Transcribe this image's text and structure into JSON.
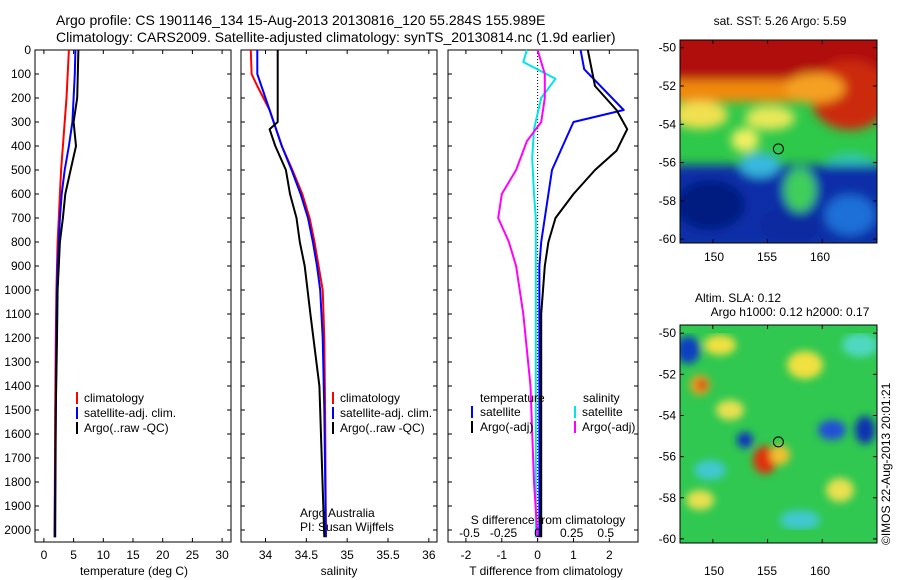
{
  "header": {
    "line1": "Argo profile: CS 1901146_134 15-Aug-2013 20130816_120 55.284S 155.989E",
    "line2": "Climatology: CARS2009. Satellite-adjusted climatology: synTS_20130814.nc (1.9d earlier)"
  },
  "colors": {
    "climatology": "#ff0000",
    "satellite": "#0000ff",
    "argo": "#000000",
    "salinity_sat": "#00e5e5",
    "salinity_argo": "#ff00ff"
  },
  "chart_data": [
    {
      "type": "line",
      "xlabel": "temperature (deg C)",
      "xlim": [
        -1.5,
        31.5
      ],
      "xticks": [
        0,
        5,
        10,
        15,
        20,
        25,
        30
      ],
      "ylim": [
        0,
        2050
      ],
      "yticks": [
        0,
        100,
        200,
        300,
        400,
        500,
        600,
        700,
        800,
        900,
        1000,
        1100,
        1200,
        1300,
        1400,
        1500,
        1600,
        1700,
        1800,
        1900,
        2000
      ],
      "legend": [
        "climatology",
        "satellite-adj. clim.",
        "Argo(..raw -QC)"
      ],
      "series": [
        {
          "name": "climatology",
          "color": "#ff0000",
          "x": [
            4.2,
            4.0,
            3.8,
            3.5,
            3.2,
            2.9,
            2.7,
            2.5,
            2.3,
            2.2,
            2.1,
            2.0,
            1.9,
            1.8
          ],
          "y": [
            0,
            100,
            200,
            300,
            400,
            500,
            600,
            700,
            800,
            900,
            1000,
            1200,
            1500,
            2030
          ]
        },
        {
          "name": "satellite-adj. clim.",
          "color": "#0000ff",
          "x": [
            5.3,
            5.2,
            5.0,
            4.8,
            4.2,
            3.5,
            3.0,
            2.7,
            2.5,
            2.3,
            2.2,
            2.1,
            2.0,
            1.8
          ],
          "y": [
            0,
            100,
            200,
            300,
            400,
            500,
            600,
            700,
            800,
            900,
            1000,
            1200,
            1500,
            2030
          ]
        },
        {
          "name": "Argo(..raw -QC)",
          "color": "#000000",
          "x": [
            5.8,
            5.7,
            5.6,
            5.0,
            5.4,
            4.5,
            3.6,
            3.2,
            2.7,
            2.5,
            2.3,
            2.2,
            2.0,
            1.9
          ],
          "y": [
            0,
            100,
            200,
            300,
            400,
            500,
            600,
            700,
            800,
            900,
            1000,
            1200,
            1500,
            2030
          ]
        }
      ]
    },
    {
      "type": "line",
      "xlabel": "salinity",
      "xlim": [
        33.7,
        36.1
      ],
      "xticks": [
        34,
        34.5,
        35,
        35.5,
        36
      ],
      "ylim": [
        0,
        2050
      ],
      "legend": [
        "climatology",
        "satellite-adj. clim.",
        "Argo(..raw -QC)"
      ],
      "annotation": [
        "Argo Australia",
        "PI: Susan Wijffels"
      ],
      "series": [
        {
          "name": "climatology",
          "color": "#ff0000",
          "x": [
            33.82,
            33.83,
            33.9,
            34.05,
            34.2,
            34.33,
            34.45,
            34.54,
            34.6,
            34.65,
            34.7,
            34.72,
            34.73,
            34.74
          ],
          "y": [
            0,
            100,
            150,
            250,
            400,
            500,
            600,
            700,
            800,
            900,
            1000,
            1200,
            1500,
            2030
          ]
        },
        {
          "name": "satellite-adj. clim.",
          "color": "#0000ff",
          "x": [
            33.9,
            33.9,
            33.95,
            34.05,
            34.2,
            34.32,
            34.43,
            34.52,
            34.58,
            34.63,
            34.67,
            34.7,
            34.72,
            34.74
          ],
          "y": [
            0,
            100,
            150,
            250,
            400,
            500,
            600,
            700,
            800,
            900,
            1000,
            1200,
            1500,
            2030
          ]
        },
        {
          "name": "Argo(..raw -QC)",
          "color": "#000000",
          "x": [
            34.15,
            34.15,
            34.15,
            34.15,
            34.05,
            34.12,
            34.25,
            34.3,
            34.38,
            34.42,
            34.48,
            34.55,
            34.66,
            34.72
          ],
          "y": [
            0,
            150,
            250,
            300,
            330,
            400,
            500,
            600,
            700,
            800,
            900,
            1100,
            1400,
            2030
          ]
        }
      ]
    },
    {
      "type": "line",
      "xlabel": "T difference from climatology",
      "xlabel2": "S difference from climatology",
      "xlim": [
        -2.5,
        2.8
      ],
      "xticks": [
        -2,
        -1,
        0,
        1,
        2
      ],
      "xticks2": [
        "-0.5",
        "-0.25",
        "0",
        "0.25",
        "0.5"
      ],
      "ylim": [
        0,
        2050
      ],
      "legend_left_title": "temperature",
      "legend_right_title": "salinity",
      "legend_left": [
        "satellite",
        "Argo(-adj)"
      ],
      "legend_right": [
        "satellite",
        "Argo(-adj)"
      ],
      "series": [
        {
          "name": "temperature satellite",
          "color": "#0000ff",
          "x": [
            1.2,
            1.3,
            2.4,
            1.0,
            0.7,
            0.4,
            0.3,
            0.2,
            0.1,
            0.05,
            0.05,
            0.05,
            0.05,
            0.05
          ],
          "y": [
            0,
            80,
            250,
            300,
            400,
            500,
            600,
            700,
            800,
            900,
            1100,
            1400,
            1800,
            2030
          ]
        },
        {
          "name": "temperature Argo(-adj)",
          "color": "#000000",
          "x": [
            1.4,
            1.6,
            2.2,
            2.5,
            2.2,
            1.6,
            1.0,
            0.5,
            0.3,
            0.2,
            0.1,
            0.1,
            0.1,
            0.1
          ],
          "y": [
            0,
            150,
            250,
            330,
            420,
            500,
            600,
            700,
            800,
            900,
            1100,
            1400,
            1800,
            2030
          ]
        },
        {
          "name": "salinity satellite",
          "color": "#00e5e5",
          "x": [
            -0.3,
            -0.4,
            0.5,
            0.1,
            -0.1,
            -0.15,
            -0.1,
            -0.05,
            -0.05,
            -0.05,
            -0.05,
            -0.05,
            -0.05,
            -0.05
          ],
          "y": [
            0,
            50,
            120,
            200,
            330,
            450,
            600,
            700,
            800,
            1000,
            1200,
            1500,
            1800,
            2030
          ]
        },
        {
          "name": "salinity Argo(-adj)",
          "color": "#ff00ff",
          "x": [
            0.0,
            0.2,
            0.2,
            0.1,
            -0.3,
            -0.6,
            -1.0,
            -1.1,
            -0.8,
            -0.6,
            -0.4,
            -0.2,
            -0.1,
            0.0
          ],
          "y": [
            0,
            100,
            200,
            300,
            380,
            500,
            600,
            700,
            800,
            900,
            1100,
            1400,
            1800,
            2030
          ]
        }
      ]
    },
    {
      "type": "heatmap",
      "title": "sat. SST: 5.26 Argo: 5.59",
      "xticks": [
        150,
        155,
        160
      ],
      "yticks": [
        -50,
        -52,
        -54,
        -56,
        -58,
        -60
      ],
      "xlim": [
        147,
        165
      ],
      "ylim": [
        -60.2,
        -49.6
      ],
      "marker": {
        "lon": 155.989,
        "lat": -55.284
      }
    },
    {
      "type": "heatmap",
      "title": "Altim. SLA: 0.12",
      "subtitle": "Argo h1000: 0.12 h2000: 0.17",
      "xticks": [
        150,
        155,
        160
      ],
      "yticks": [
        -50,
        -52,
        -54,
        -56,
        -58,
        -60
      ],
      "xlim": [
        147,
        165
      ],
      "ylim": [
        -60.2,
        -49.6
      ],
      "marker": {
        "lon": 155.989,
        "lat": -55.284
      }
    }
  ],
  "side_stamp": "©IMOS 22-Aug-2013 20:01:21"
}
